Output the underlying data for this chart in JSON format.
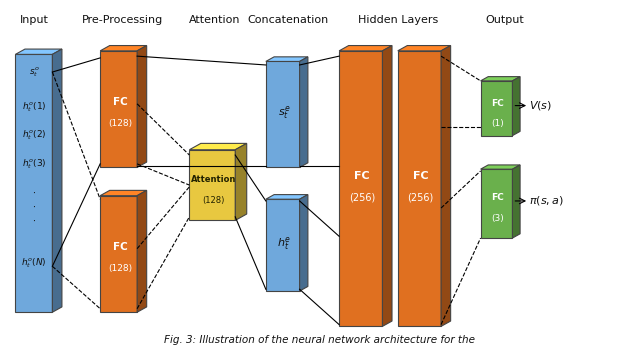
{
  "bg_color": "#ffffff",
  "section_labels": [
    "Input",
    "Pre-Processing",
    "Attention",
    "Concatenation",
    "Hidden Layers",
    "Output"
  ],
  "blue_color": "#6fa8dc",
  "orange_color": "#e07020",
  "yellow_color": "#e8c840",
  "green_color": "#6ab04c",
  "caption": "Fig. 3: Illustration of the neural network architecture for the"
}
